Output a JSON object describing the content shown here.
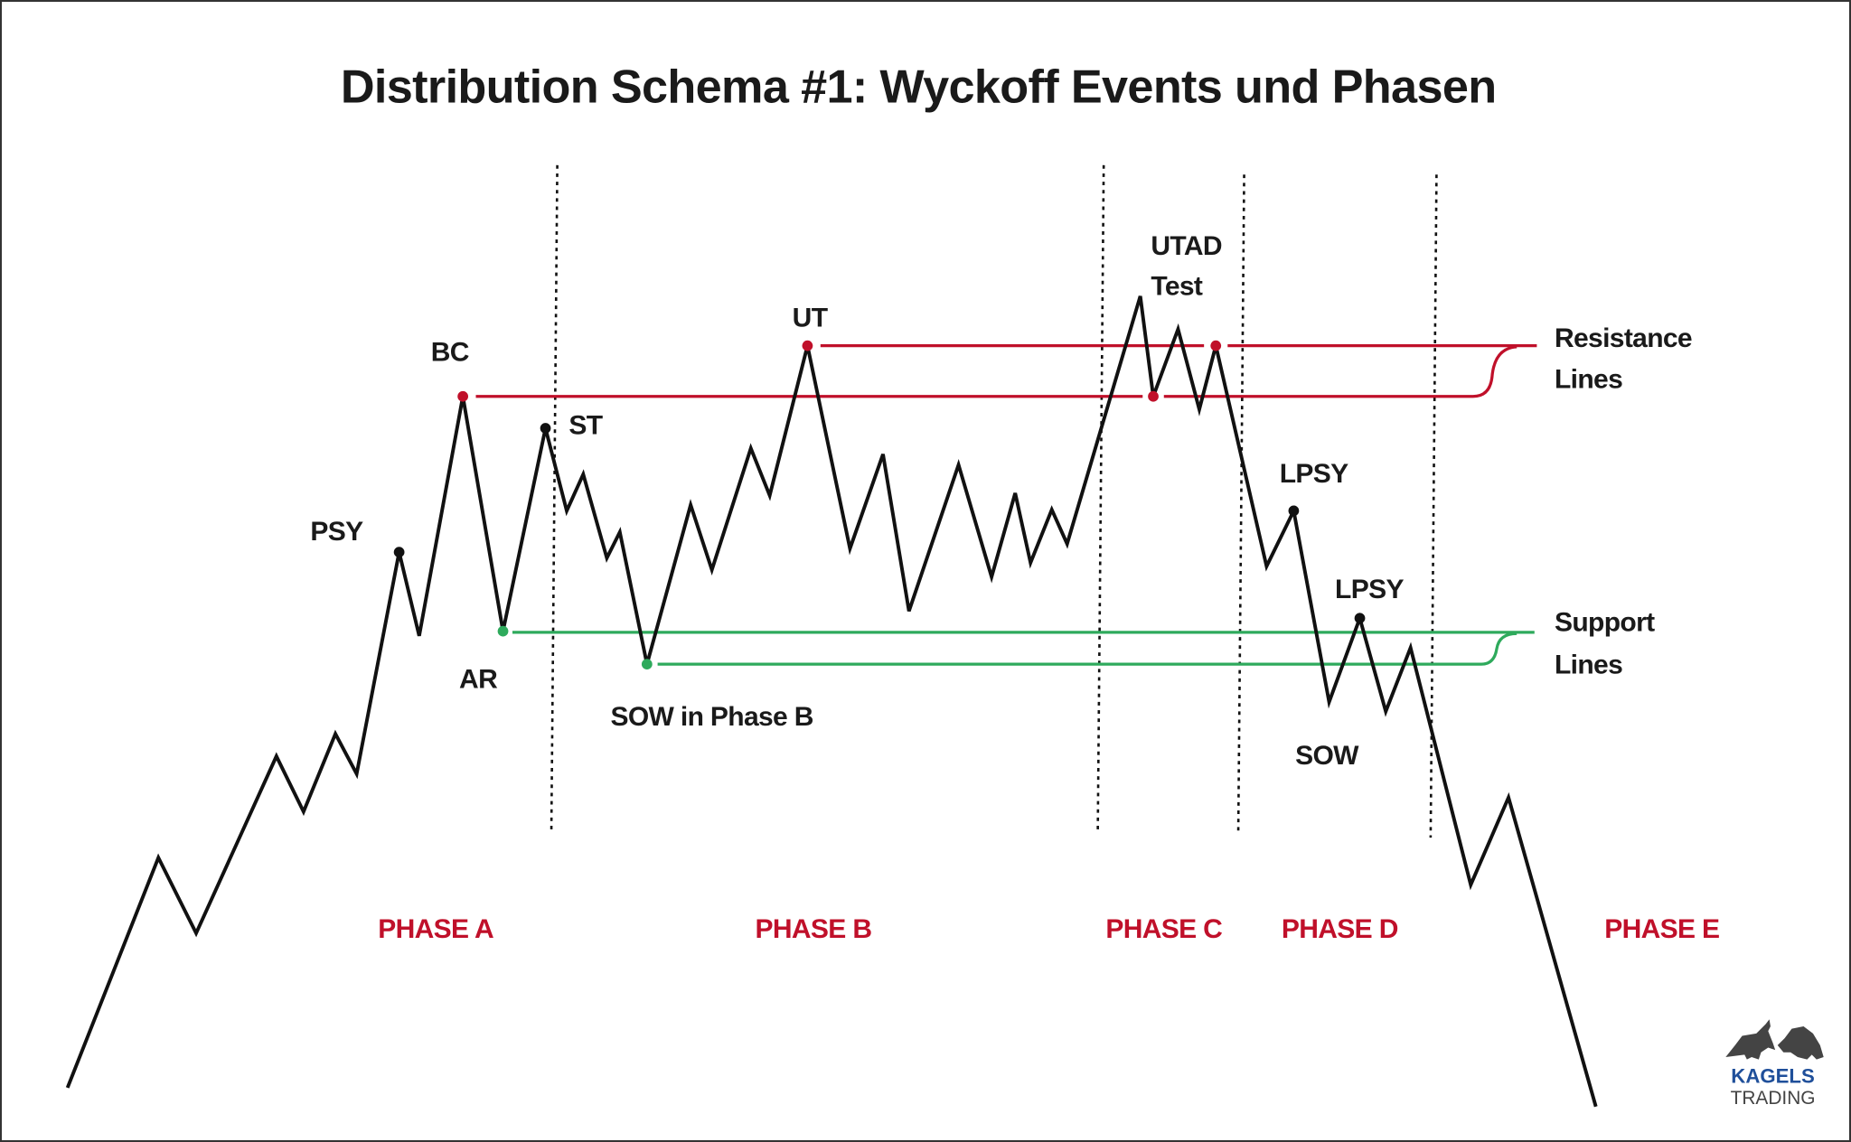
{
  "title": "Distribution Schema #1: Wyckoff Events und Phasen",
  "events": {
    "psy": "PSY",
    "bc": "BC",
    "st": "ST",
    "ar": "AR",
    "sow_phase_b": "SOW in Phase B",
    "ut": "UT",
    "utad": "UTAD",
    "test": "Test",
    "lpsy_1": "LPSY",
    "lpsy_2": "LPSY",
    "sow": "SOW"
  },
  "legend": {
    "resistance_line1": "Resistance",
    "resistance_line2": "Lines",
    "support_line1": "Support",
    "support_line2": "Lines"
  },
  "phases": [
    "PHASE A",
    "PHASE B",
    "PHASE C",
    "PHASE D",
    "PHASE E"
  ],
  "logo": {
    "line1": "KAGELS",
    "line2": "TRADING"
  },
  "colors": {
    "resistance": "#c0102a",
    "support": "#2eaa5c",
    "price": "#111111",
    "phase_label": "#c0102a",
    "logo_blue": "#1f4f9a"
  }
}
